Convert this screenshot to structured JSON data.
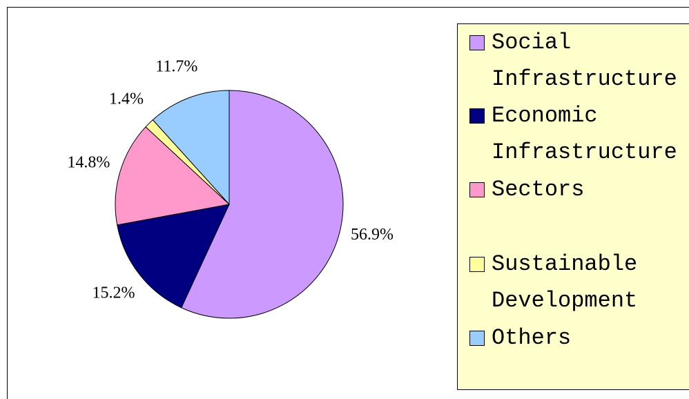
{
  "chart_data": {
    "type": "pie",
    "categories": [
      "Social Infrastructure",
      "Economic Infrastructure",
      "Sectors",
      "Sustainable Development",
      "Others"
    ],
    "values": [
      56.9,
      15.2,
      14.8,
      1.4,
      11.7
    ],
    "value_labels": [
      "56.9%",
      "15.2%",
      "14.8%",
      "1.4%",
      "11.7%"
    ],
    "colors": [
      "#cc99ff",
      "#000080",
      "#ff99cc",
      "#ffff99",
      "#99ccff"
    ],
    "legend": "right"
  }
}
